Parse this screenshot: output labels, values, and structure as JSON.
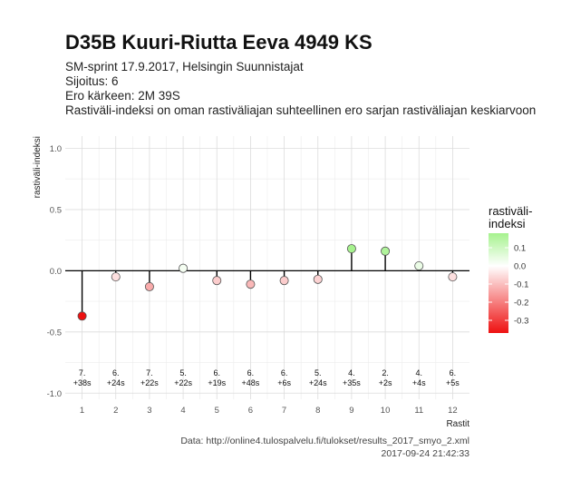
{
  "header": {
    "title": "D35B Kuuri-Riutta Eeva 4949 KS",
    "subtitle_lines": [
      "SM-sprint 17.9.2017, Helsingin Suunnistajat",
      "Sijoitus: 6",
      "Ero kärkeen: 2M 39S",
      "Rastiväli-indeksi on oman rastiväliajan suhteellinen ero sarjan rastiväliajan keskiarvoon"
    ]
  },
  "caption": {
    "source": "Data: http://online4.tulospalvelu.fi/tulokset/results_2017_smyo_2.xml",
    "timestamp": "2017-09-24 21:42:33"
  },
  "chart_data": {
    "type": "lollipop",
    "xlabel": "Rastit",
    "ylabel": "rastiväli-indeksi",
    "categories": [
      "1",
      "2",
      "3",
      "4",
      "5",
      "6",
      "7",
      "8",
      "9",
      "10",
      "11",
      "12"
    ],
    "xlim": [
      0.5,
      12.5
    ],
    "ylim": [
      -1.05,
      1.1
    ],
    "y_ticks": [
      -1.0,
      -0.5,
      0.0,
      0.5,
      1.0
    ],
    "y_tick_labels": [
      "-1.0",
      "-0.5",
      "0.0",
      "0.5",
      "1.0"
    ],
    "values": [
      -0.37,
      -0.05,
      -0.13,
      0.02,
      -0.08,
      -0.11,
      -0.08,
      -0.07,
      0.18,
      0.16,
      0.04,
      -0.05
    ],
    "point_labels": [
      [
        "7.",
        "+38s"
      ],
      [
        "6.",
        "+24s"
      ],
      [
        "7.",
        "+22s"
      ],
      [
        "5.",
        "+22s"
      ],
      [
        "6.",
        "+19s"
      ],
      [
        "6.",
        "+48s"
      ],
      [
        "6.",
        "+6s"
      ],
      [
        "5.",
        "+24s"
      ],
      [
        "4.",
        "+35s"
      ],
      [
        "2.",
        "+2s"
      ],
      [
        "4.",
        "+4s"
      ],
      [
        "6.",
        "+5s"
      ]
    ],
    "grid": true,
    "legend": {
      "title_lines": [
        "rastiväli-",
        "indeksi"
      ],
      "placement": "right",
      "ticks": [
        0.1,
        0.0,
        -0.1,
        -0.2,
        -0.3
      ],
      "tick_labels": [
        "0.1",
        "0.0",
        "-0.1",
        "-0.2",
        "-0.3"
      ],
      "range": [
        -0.37,
        0.18
      ]
    },
    "colors": {
      "high": "#a6f28e",
      "mid": "#ffffff",
      "low": "#ee1111"
    }
  }
}
